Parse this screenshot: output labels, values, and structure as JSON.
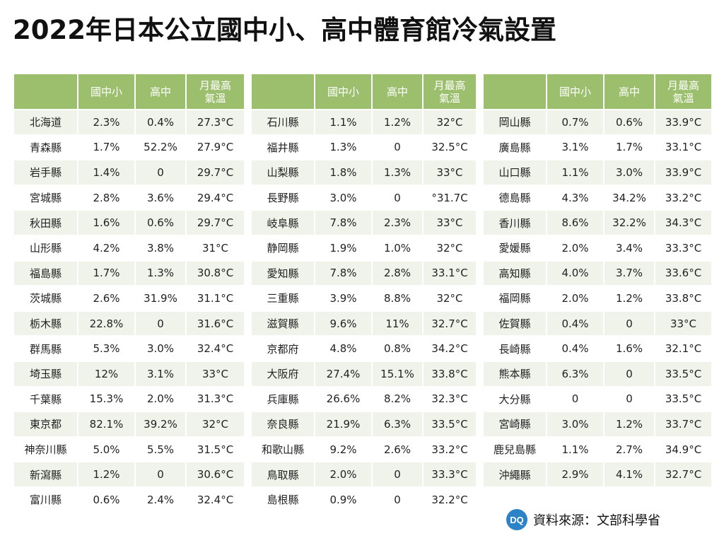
{
  "title": "2022年日本公立國中小、高中體育館冷氣設置",
  "headers": {
    "name": "",
    "col1": "國中小",
    "col2": "高中",
    "col3_line1": "月最高",
    "col3_line2": "氣溫"
  },
  "tables": [
    {
      "rows": [
        {
          "name": "北海道",
          "elem": "2.3%",
          "high": "0.4%",
          "temp": "27.3°C"
        },
        {
          "name": "青森縣",
          "elem": "1.7%",
          "high": "52.2%",
          "temp": "27.9°C"
        },
        {
          "name": "岩手縣",
          "elem": "1.4%",
          "high": "0",
          "temp": "29.7°C"
        },
        {
          "name": "宮城縣",
          "elem": "2.8%",
          "high": "3.6%",
          "temp": "29.4°C"
        },
        {
          "name": "秋田縣",
          "elem": "1.6%",
          "high": "0.6%",
          "temp": "29.7°C"
        },
        {
          "name": "山形縣",
          "elem": "4.2%",
          "high": "3.8%",
          "temp": "31°C"
        },
        {
          "name": "福島縣",
          "elem": "1.7%",
          "high": "1.3%",
          "temp": "30.8°C"
        },
        {
          "name": "茨城縣",
          "elem": "2.6%",
          "high": "31.9%",
          "temp": "31.1°C"
        },
        {
          "name": "栃木縣",
          "elem": "22.8%",
          "high": "0",
          "temp": "31.6°C"
        },
        {
          "name": "群馬縣",
          "elem": "5.3%",
          "high": "3.0%",
          "temp": "32.4°C"
        },
        {
          "name": "埼玉縣",
          "elem": "12%",
          "high": "3.1%",
          "temp": "33°C"
        },
        {
          "name": "千葉縣",
          "elem": "15.3%",
          "high": "2.0%",
          "temp": "31.3°C"
        },
        {
          "name": "東京都",
          "elem": "82.1%",
          "high": "39.2%",
          "temp": "32°C"
        },
        {
          "name": "神奈川縣",
          "elem": "5.0%",
          "high": "5.5%",
          "temp": "31.5°C"
        },
        {
          "name": "新瀉縣",
          "elem": "1.2%",
          "high": "0",
          "temp": "30.6°C"
        },
        {
          "name": "富川縣",
          "elem": "0.6%",
          "high": "2.4%",
          "temp": "32.4°C"
        }
      ]
    },
    {
      "rows": [
        {
          "name": "石川縣",
          "elem": "1.1%",
          "high": "1.2%",
          "temp": "32°C"
        },
        {
          "name": "福井縣",
          "elem": "1.3%",
          "high": "0",
          "temp": "32.5°C"
        },
        {
          "name": "山梨縣",
          "elem": "1.8%",
          "high": "1.3%",
          "temp": "33°C"
        },
        {
          "name": "長野縣",
          "elem": "3.0%",
          "high": "0",
          "temp": "°31.7C"
        },
        {
          "name": "岐阜縣",
          "elem": "7.8%",
          "high": "2.3%",
          "temp": "33°C"
        },
        {
          "name": "静岡縣",
          "elem": "1.9%",
          "high": "1.0%",
          "temp": "32°C"
        },
        {
          "name": "愛知縣",
          "elem": "7.8%",
          "high": "2.8%",
          "temp": "33.1°C"
        },
        {
          "name": "三重縣",
          "elem": "3.9%",
          "high": "8.8%",
          "temp": "32°C"
        },
        {
          "name": "滋賀縣",
          "elem": "9.6%",
          "high": "11%",
          "temp": "32.7°C"
        },
        {
          "name": "京都府",
          "elem": "4.8%",
          "high": "0.8%",
          "temp": "34.2°C"
        },
        {
          "name": "大阪府",
          "elem": "27.4%",
          "high": "15.1%",
          "temp": "33.8°C"
        },
        {
          "name": "兵庫縣",
          "elem": "26.6%",
          "high": "8.2%",
          "temp": "32.3°C"
        },
        {
          "name": "奈良縣",
          "elem": "21.9%",
          "high": "6.3%",
          "temp": "33.5°C"
        },
        {
          "name": "和歌山縣",
          "elem": "9.2%",
          "high": "2.6%",
          "temp": "33.2°C"
        },
        {
          "name": "鳥取縣",
          "elem": "2.0%",
          "high": "0",
          "temp": "33.3°C"
        },
        {
          "name": "島根縣",
          "elem": "0.9%",
          "high": "0",
          "temp": "32.2°C"
        }
      ]
    },
    {
      "rows": [
        {
          "name": "岡山縣",
          "elem": "0.7%",
          "high": "0.6%",
          "temp": "33.9°C"
        },
        {
          "name": "廣島縣",
          "elem": "3.1%",
          "high": "1.7%",
          "temp": "33.1°C"
        },
        {
          "name": "山口縣",
          "elem": "1.1%",
          "high": "3.0%",
          "temp": "33.9°C"
        },
        {
          "name": "德島縣",
          "elem": "4.3%",
          "high": "34.2%",
          "temp": "33.2°C"
        },
        {
          "name": "香川縣",
          "elem": "8.6%",
          "high": "32.2%",
          "temp": "34.3°C"
        },
        {
          "name": "愛媛縣",
          "elem": "2.0%",
          "high": "3.4%",
          "temp": "33.3°C"
        },
        {
          "name": "高知縣",
          "elem": "4.0%",
          "high": "3.7%",
          "temp": "33.6°C"
        },
        {
          "name": "福岡縣",
          "elem": "2.0%",
          "high": "1.2%",
          "temp": "33.8°C"
        },
        {
          "name": "佐賀縣",
          "elem": "0.4%",
          "high": "0",
          "temp": "33°C"
        },
        {
          "name": "長崎縣",
          "elem": "0.4%",
          "high": "1.6%",
          "temp": "32.1°C"
        },
        {
          "name": "熊本縣",
          "elem": "6.3%",
          "high": "0",
          "temp": "33.5°C"
        },
        {
          "name": "大分縣",
          "elem": "0",
          "high": "0",
          "temp": "33.5°C"
        },
        {
          "name": "宮崎縣",
          "elem": "3.0%",
          "high": "1.2%",
          "temp": "33.7°C"
        },
        {
          "name": "鹿兒島縣",
          "elem": "1.1%",
          "high": "2.7%",
          "temp": "34.9°C"
        },
        {
          "name": "沖繩縣",
          "elem": "2.9%",
          "high": "4.1%",
          "temp": "32.7°C"
        }
      ]
    }
  ],
  "source": {
    "logo_text": "DQ",
    "label": "資料來源：文部科學省"
  },
  "colors": {
    "header_bg": "#9cbf6e",
    "row_alt_bg": "#eff3ea",
    "logo_bg": "#2c83c6"
  }
}
